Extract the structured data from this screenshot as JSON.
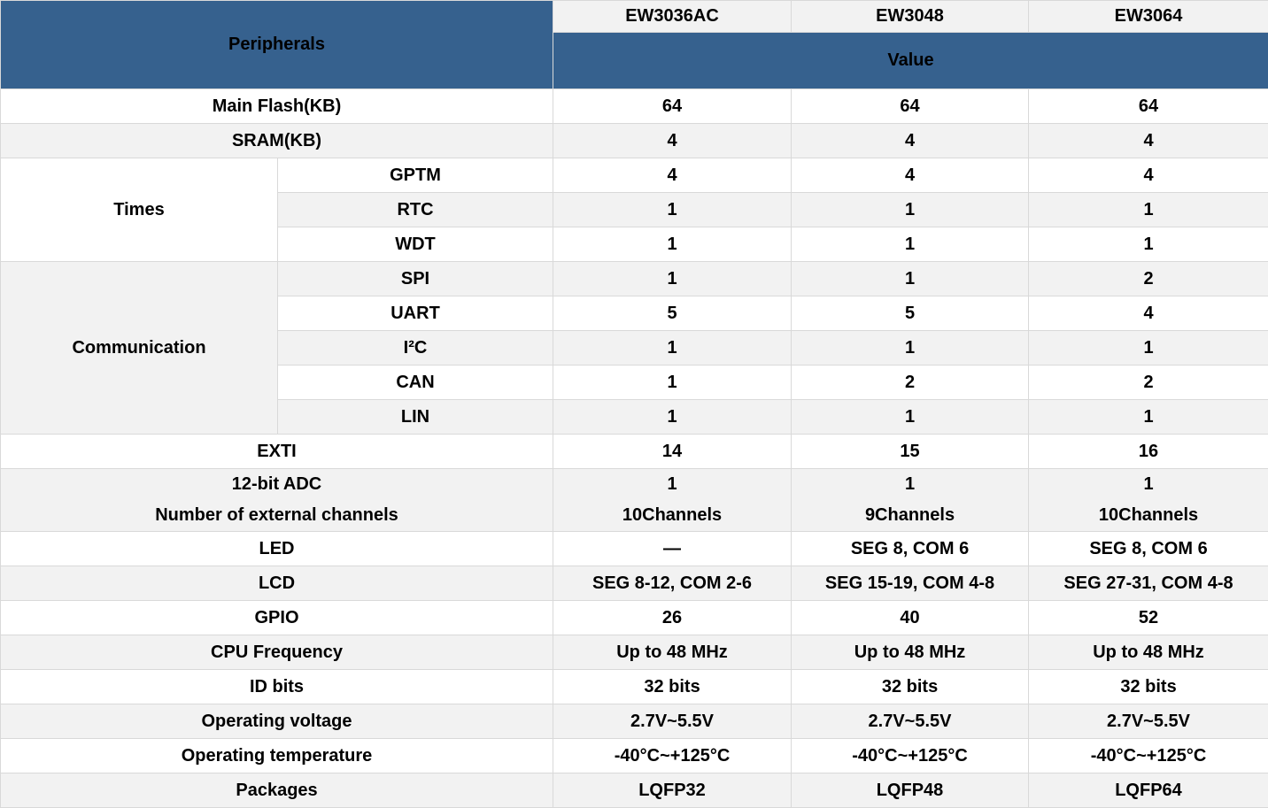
{
  "colors": {
    "header_blue": "#36618e",
    "stripe_gray": "#f2f2f2",
    "border_gray": "#d9d9d9",
    "header_text": "#ffffff",
    "body_text": "#000000"
  },
  "table": {
    "header": {
      "peripherals_label": "Peripherals",
      "value_label": "Value",
      "models": [
        "EW3036AC",
        "EW3048",
        "EW3064"
      ]
    },
    "groups": {
      "times": "Times",
      "communication": "Communication"
    },
    "rows": [
      {
        "label": "Main Flash(KB)",
        "values": [
          "64",
          "64",
          "64"
        ]
      },
      {
        "label": "SRAM(KB)",
        "values": [
          "4",
          "4",
          "4"
        ]
      },
      {
        "label": "GPTM",
        "values": [
          "4",
          "4",
          "4"
        ]
      },
      {
        "label": "RTC",
        "values": [
          "1",
          "1",
          "1"
        ]
      },
      {
        "label": "WDT",
        "values": [
          "1",
          "1",
          "1"
        ]
      },
      {
        "label": "SPI",
        "values": [
          "1",
          "1",
          "2"
        ]
      },
      {
        "label": "UART",
        "values": [
          "5",
          "5",
          "4"
        ]
      },
      {
        "label": "I²C",
        "values": [
          "1",
          "1",
          "1"
        ]
      },
      {
        "label": "CAN",
        "values": [
          "1",
          "2",
          "2"
        ]
      },
      {
        "label": "LIN",
        "values": [
          "1",
          "1",
          "1"
        ]
      },
      {
        "label": "EXTI",
        "values": [
          "14",
          "15",
          "16"
        ]
      },
      {
        "label": "12-bit ADC\nNumber of external channels",
        "values": [
          "1\n10Channels",
          "1\n9Channels",
          "1\n10Channels"
        ]
      },
      {
        "label": "LED",
        "values": [
          "—",
          "SEG 8, COM 6",
          "SEG 8, COM 6"
        ]
      },
      {
        "label": "LCD",
        "values": [
          "SEG 8-12, COM 2-6",
          "SEG 15-19, COM 4-8",
          "SEG 27-31, COM 4-8"
        ]
      },
      {
        "label": "GPIO",
        "values": [
          "26",
          "40",
          "52"
        ]
      },
      {
        "label": "CPU Frequency",
        "values": [
          "Up to 48 MHz",
          "Up to 48 MHz",
          "Up to 48 MHz"
        ]
      },
      {
        "label": "ID bits",
        "values": [
          "32 bits",
          "32 bits",
          "32 bits"
        ]
      },
      {
        "label": "Operating voltage",
        "values": [
          "2.7V~5.5V",
          "2.7V~5.5V",
          "2.7V~5.5V"
        ]
      },
      {
        "label": "Operating temperature",
        "values": [
          "-40°C~+125°C",
          "-40°C~+125°C",
          "-40°C~+125°C"
        ]
      },
      {
        "label": "Packages",
        "values": [
          "LQFP32",
          "LQFP48",
          "LQFP64"
        ]
      }
    ]
  }
}
